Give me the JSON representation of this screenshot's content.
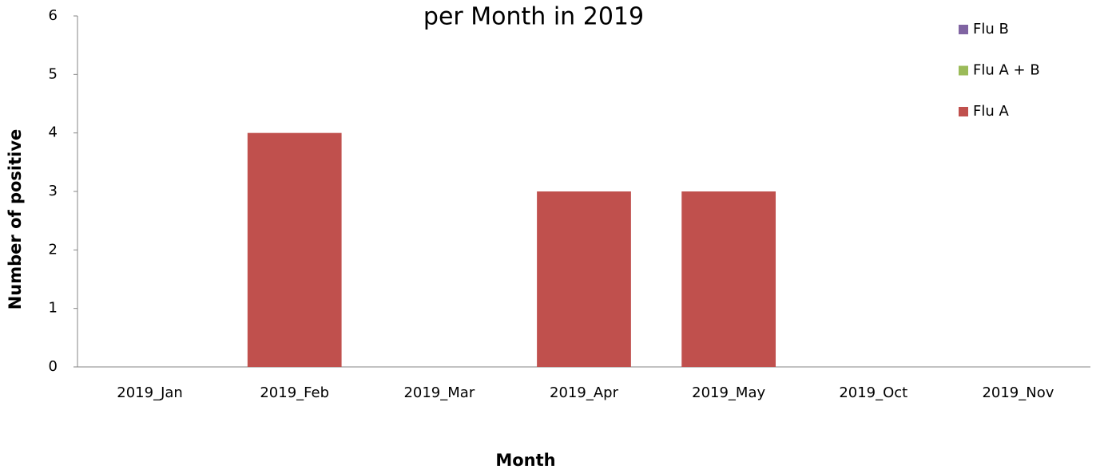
{
  "chart_data": {
    "type": "bar",
    "stacked": true,
    "title": "per Month in 2019",
    "x_label": "Month",
    "y_label": "Number of positive",
    "categories": [
      "2019_Jan",
      "2019_Feb",
      "2019_Mar",
      "2019_Apr",
      "2019_May",
      "2019_Oct",
      "2019_Nov"
    ],
    "series": [
      {
        "name": "Flu A",
        "color": "#c0504d",
        "values": [
          0,
          4,
          0,
          3,
          3,
          0,
          0
        ]
      },
      {
        "name": "Flu A + B",
        "color": "#9bbb59",
        "values": [
          0,
          0,
          0,
          0,
          0,
          0,
          0
        ]
      },
      {
        "name": "Flu B",
        "color": "#8064a2",
        "values": [
          0,
          0,
          0,
          0,
          0,
          0,
          0
        ]
      }
    ],
    "ylim": [
      0,
      6
    ],
    "yticks": [
      0,
      1,
      2,
      3,
      4,
      5,
      6
    ],
    "grid": false,
    "legend": "upper right"
  }
}
